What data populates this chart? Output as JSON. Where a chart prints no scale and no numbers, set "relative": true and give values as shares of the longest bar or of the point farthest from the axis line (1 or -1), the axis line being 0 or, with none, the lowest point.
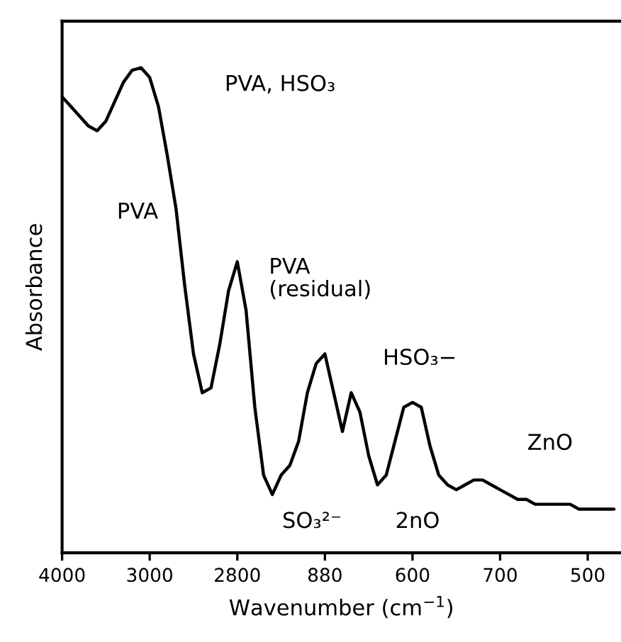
{
  "chart_data": {
    "type": "line",
    "relative": true,
    "xlabel": "Wavenumber (cm$^{−1}$)",
    "ylabel": "Absorbance",
    "categories": [
      "4000",
      null,
      null,
      null,
      null,
      null,
      null,
      null,
      null,
      null,
      "3000",
      null,
      null,
      null,
      null,
      null,
      null,
      null,
      null,
      null,
      "2800",
      null,
      null,
      null,
      null,
      null,
      null,
      null,
      null,
      null,
      "880",
      null,
      null,
      null,
      null,
      null,
      null,
      null,
      null,
      null,
      "600",
      null,
      null,
      null,
      null,
      null,
      null,
      null,
      null,
      null,
      "700",
      null,
      null,
      null,
      null,
      null,
      null,
      null,
      null,
      null,
      "500",
      null,
      null,
      null
    ],
    "series": [
      {
        "color": "#000000",
        "values": [
          0.94,
          0.92,
          0.9,
          0.88,
          0.87,
          0.89,
          0.93,
          0.97,
          0.995,
          1.0,
          0.98,
          0.92,
          0.82,
          0.71,
          0.55,
          0.41,
          0.33,
          0.34,
          0.43,
          0.54,
          0.6,
          0.5,
          0.3,
          0.16,
          0.12,
          0.16,
          0.18,
          0.23,
          0.33,
          0.39,
          0.41,
          0.33,
          0.25,
          0.33,
          0.29,
          0.2,
          0.14,
          0.16,
          0.23,
          0.3,
          0.31,
          0.3,
          0.22,
          0.16,
          0.14,
          0.13,
          0.14,
          0.15,
          0.15,
          0.14,
          0.13,
          0.12,
          0.11,
          0.11,
          0.1,
          0.1,
          0.1,
          0.1,
          0.1,
          0.09,
          0.09,
          0.09,
          0.09,
          0.09
        ]
      }
    ],
    "annotations": [
      "PVA, HSO₃",
      "PVA",
      "PVA\n(residual)",
      "HSO₃−",
      "ZnO",
      "SO₃²⁻",
      "2nO"
    ],
    "grid": false,
    "legend": false
  }
}
